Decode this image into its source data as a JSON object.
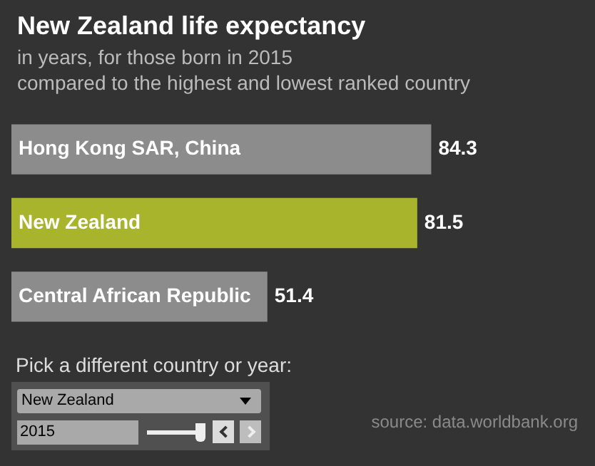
{
  "chart_data": {
    "type": "bar",
    "orientation": "horizontal",
    "title": "New Zealand life expectancy",
    "subtitle": "in years, for those born in 2015\ncompared to the highest and lowest ranked country",
    "categories": [
      "Hong Kong SAR, China",
      "New Zealand",
      "Central African Republic"
    ],
    "values": [
      84.3,
      81.5,
      51.4
    ],
    "colors": [
      "#8c8c8c",
      "#a8b42c",
      "#8c8c8c"
    ],
    "data_labels": true,
    "grid": false,
    "legend": false,
    "annotations": [
      "Pick a different country or year:",
      "New Zealand",
      "2015",
      "source: data.worldbank.org"
    ]
  }
}
